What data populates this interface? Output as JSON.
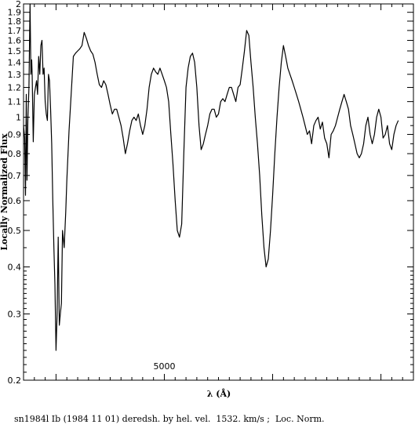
{
  "chart_data": {
    "type": "line",
    "title": "",
    "xlabel": "λ (Å)",
    "ylabel": "Locally Normalized Flux",
    "caption": "sn1984l Ib (1984 11 01) deredsh. by hel. vel.  1532. km/s ;  Loc. Norm.",
    "y_scale": "log",
    "ylim": [
      0.2,
      2.0
    ],
    "xlim": [
      3700,
      7300
    ],
    "grid": false,
    "x_tick_labels": [
      {
        "value": 5000,
        "label": "5000"
      }
    ],
    "y_tick_labels": [
      {
        "value": 2,
        "label": "2"
      },
      {
        "value": 1.9,
        "label": "1.9"
      },
      {
        "value": 1.8,
        "label": "1.8"
      },
      {
        "value": 1.7,
        "label": "1.7"
      },
      {
        "value": 1.6,
        "label": "1.6"
      },
      {
        "value": 1.5,
        "label": "1.5"
      },
      {
        "value": 1.4,
        "label": "1.4"
      },
      {
        "value": 1.3,
        "label": "1.3"
      },
      {
        "value": 1.2,
        "label": "1.2"
      },
      {
        "value": 1.1,
        "label": "1.1"
      },
      {
        "value": 1,
        "label": "1"
      },
      {
        "value": 0.9,
        "label": "0.9"
      },
      {
        "value": 0.8,
        "label": "0.8"
      },
      {
        "value": 0.7,
        "label": "0.7"
      },
      {
        "value": 0.6,
        "label": "0.6"
      },
      {
        "value": 0.5,
        "label": "0.5"
      },
      {
        "value": 0.4,
        "label": "0.4"
      },
      {
        "value": 0.3,
        "label": "0.3"
      },
      {
        "value": 0.2,
        "label": "0.2"
      }
    ],
    "y_minor_ticks": [
      0.21,
      0.22,
      0.23,
      0.24,
      0.25,
      0.26,
      0.27,
      0.28,
      0.29,
      0.31,
      0.32,
      0.33,
      0.34,
      0.35,
      0.36,
      0.37,
      0.38,
      0.39,
      0.45,
      0.55,
      0.65,
      0.75,
      0.85,
      0.95
    ],
    "x_major_ticks": [
      4000,
      5000,
      6000,
      7000
    ],
    "x_minor_ticks": [
      3800,
      3900,
      4100,
      4200,
      4300,
      4400,
      4500,
      4600,
      4700,
      4800,
      4900,
      5100,
      5200,
      5300,
      5400,
      5500,
      5600,
      5700,
      5800,
      5900,
      6100,
      6200,
      6300,
      6400,
      6500,
      6600,
      6700,
      6800,
      6900,
      7100,
      7200
    ],
    "series": [
      {
        "x": [
          3700,
          3710,
          3718,
          3725,
          3732,
          3740,
          3750,
          3760,
          3768,
          3775,
          3780,
          3790,
          3800,
          3810,
          3820,
          3830,
          3840,
          3850,
          3860,
          3870,
          3880,
          3890,
          3900,
          3910,
          3920,
          3930,
          3940,
          3950,
          3960,
          3970,
          3980,
          3990,
          4000,
          4010,
          4020,
          4030,
          4040,
          4050,
          4060,
          4075,
          4090,
          4100,
          4120,
          4140,
          4160,
          4180,
          4200,
          4220,
          4240,
          4260,
          4280,
          4300,
          4320,
          4340,
          4360,
          4380,
          4400,
          4420,
          4440,
          4460,
          4480,
          4500,
          4520,
          4540,
          4560,
          4580,
          4600,
          4620,
          4640,
          4660,
          4680,
          4700,
          4720,
          4740,
          4760,
          4780,
          4800,
          4820,
          4840,
          4860,
          4880,
          4900,
          4920,
          4940,
          4960,
          4980,
          5000,
          5020,
          5040,
          5060,
          5080,
          5100,
          5120,
          5140,
          5160,
          5180,
          5200,
          5220,
          5240,
          5260,
          5280,
          5300,
          5320,
          5340,
          5360,
          5380,
          5400,
          5420,
          5440,
          5460,
          5480,
          5500,
          5520,
          5540,
          5560,
          5580,
          5600,
          5620,
          5640,
          5660,
          5680,
          5700,
          5720,
          5740,
          5760,
          5780,
          5800,
          5820,
          5840,
          5860,
          5880,
          5900,
          5920,
          5940,
          5960,
          5980,
          6000,
          6020,
          6040,
          6060,
          6080,
          6100,
          6120,
          6140,
          6160,
          6180,
          6200,
          6220,
          6240,
          6260,
          6280,
          6300,
          6320,
          6340,
          6360,
          6380,
          6400,
          6420,
          6440,
          6460,
          6480,
          6500,
          6520,
          6540,
          6560,
          6580,
          6600,
          6620,
          6640,
          6660,
          6680,
          6700,
          6720,
          6740,
          6760,
          6780,
          6800,
          6820,
          6840,
          6860,
          6880,
          6900,
          6920,
          6940,
          6960,
          6980,
          7000,
          7020,
          7040,
          7060,
          7080,
          7100,
          7120,
          7140,
          7160
        ],
        "y": [
          0.95,
          0.88,
          0.62,
          1.15,
          0.68,
          0.98,
          1.2,
          2.0,
          1.3,
          1.42,
          1.3,
          0.86,
          1.15,
          1.2,
          1.25,
          1.15,
          1.45,
          1.3,
          1.55,
          1.6,
          1.3,
          1.35,
          1.1,
          1.02,
          0.98,
          1.3,
          1.25,
          1.05,
          0.85,
          0.6,
          0.45,
          0.36,
          0.24,
          0.3,
          0.48,
          0.28,
          0.3,
          0.32,
          0.5,
          0.45,
          0.56,
          0.68,
          0.92,
          1.15,
          1.45,
          1.48,
          1.5,
          1.52,
          1.55,
          1.68,
          1.62,
          1.55,
          1.5,
          1.47,
          1.4,
          1.3,
          1.22,
          1.2,
          1.25,
          1.22,
          1.15,
          1.08,
          1.02,
          1.05,
          1.05,
          1.0,
          0.95,
          0.88,
          0.8,
          0.85,
          0.92,
          0.98,
          1.0,
          0.98,
          1.02,
          0.95,
          0.9,
          0.95,
          1.05,
          1.2,
          1.3,
          1.35,
          1.32,
          1.3,
          1.35,
          1.3,
          1.25,
          1.2,
          1.1,
          0.9,
          0.75,
          0.6,
          0.5,
          0.48,
          0.52,
          0.8,
          1.2,
          1.35,
          1.45,
          1.48,
          1.4,
          1.2,
          0.95,
          0.82,
          0.85,
          0.9,
          0.95,
          1.02,
          1.05,
          1.05,
          1.0,
          1.02,
          1.1,
          1.12,
          1.1,
          1.15,
          1.2,
          1.2,
          1.15,
          1.1,
          1.2,
          1.22,
          1.35,
          1.5,
          1.7,
          1.65,
          1.4,
          1.2,
          1.0,
          0.85,
          0.7,
          0.55,
          0.45,
          0.4,
          0.42,
          0.5,
          0.62,
          0.8,
          1.0,
          1.2,
          1.4,
          1.55,
          1.45,
          1.35,
          1.3,
          1.25,
          1.2,
          1.15,
          1.1,
          1.05,
          1.0,
          0.95,
          0.9,
          0.92,
          0.85,
          0.95,
          0.98,
          1.0,
          0.93,
          0.97,
          0.88,
          0.85,
          0.78,
          0.9,
          0.92,
          0.95,
          1.0,
          1.05,
          1.1,
          1.15,
          1.1,
          1.05,
          0.95,
          0.9,
          0.85,
          0.8,
          0.78,
          0.8,
          0.85,
          0.95,
          1.0,
          0.9,
          0.85,
          0.9,
          1.0,
          1.05,
          1.0,
          0.88,
          0.9,
          0.95,
          0.85,
          0.82,
          0.9,
          0.95,
          0.98
        ]
      }
    ]
  }
}
